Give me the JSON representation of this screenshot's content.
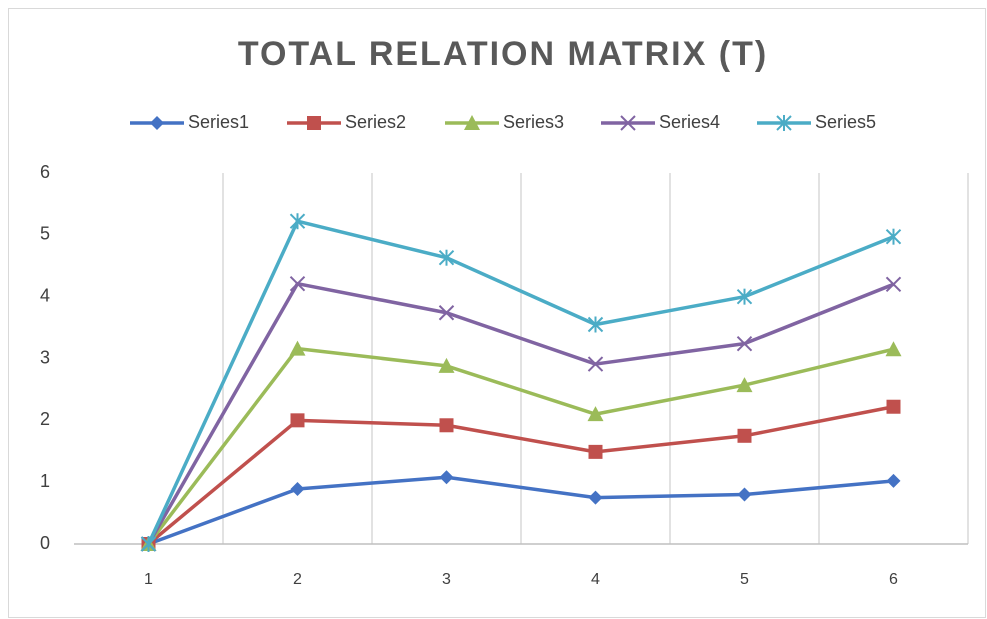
{
  "chart_data": {
    "type": "line",
    "title": "TOTAL RELATION MATRIX (T)",
    "categories": [
      "1",
      "2",
      "3",
      "4",
      "5",
      "6"
    ],
    "series": [
      {
        "name": "Series1",
        "color": "#4472c4",
        "marker": "diamond",
        "values": [
          0,
          0.89,
          1.08,
          0.75,
          0.8,
          1.02
        ]
      },
      {
        "name": "Series2",
        "color": "#c0504d",
        "marker": "square",
        "values": [
          0,
          2.0,
          1.92,
          1.49,
          1.75,
          2.22
        ]
      },
      {
        "name": "Series3",
        "color": "#9bbb59",
        "marker": "triangle",
        "values": [
          0,
          3.16,
          2.88,
          2.1,
          2.57,
          3.15
        ]
      },
      {
        "name": "Series4",
        "color": "#8064a2",
        "marker": "x",
        "values": [
          0,
          4.21,
          3.74,
          2.91,
          3.24,
          4.2
        ]
      },
      {
        "name": "Series5",
        "color": "#4bacc6",
        "marker": "star",
        "values": [
          0,
          5.22,
          4.63,
          3.55,
          4.0,
          4.97
        ]
      }
    ],
    "ylim": [
      0,
      6
    ],
    "yticks": [
      0,
      1,
      2,
      3,
      4,
      5,
      6
    ],
    "legend": "top",
    "xgrid": true
  }
}
